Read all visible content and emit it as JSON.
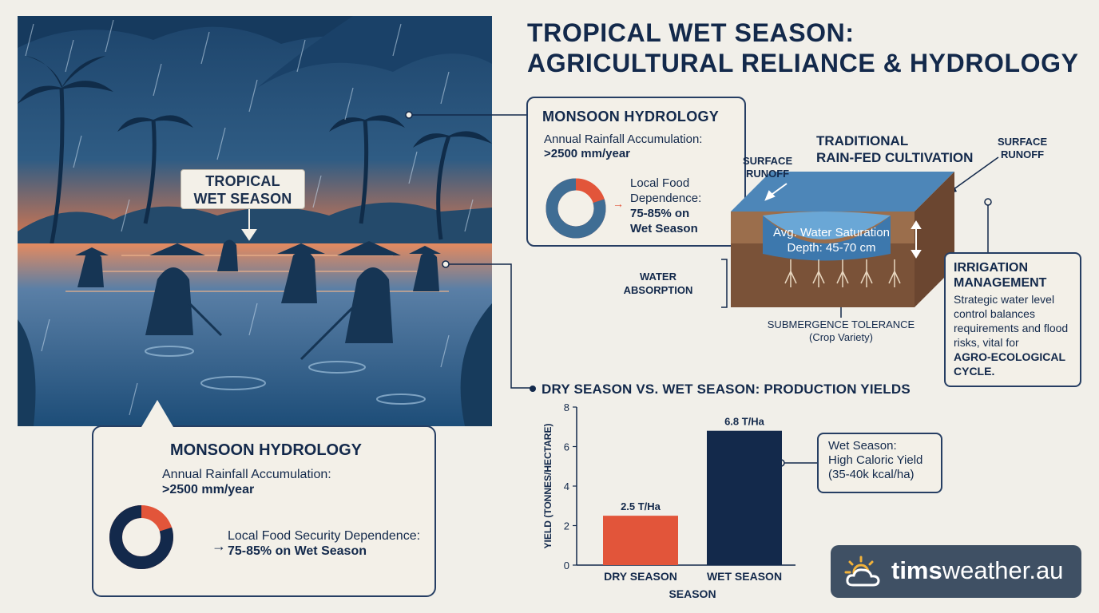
{
  "title": {
    "line1": "TROPICAL WET SEASON:",
    "line2": "AGRICULTURAL RELIANCE & HYDROLOGY"
  },
  "scene": {
    "label_line1": "TROPICAL",
    "label_line2": "WET SEASON"
  },
  "monsoon_left": {
    "title": "MONSOON HYDROLOGY",
    "rainfall_label": "Annual Rainfall Accumulation:",
    "rainfall_value": ">2500 mm/year",
    "dependence_label": "Local Food Security Dependence:",
    "dependence_value": "75-85% on Wet Season",
    "donut_share": 0.8,
    "arrow": "→"
  },
  "monsoon_right": {
    "title": "MONSOON HYDROLOGY",
    "rainfall_label": "Annual Rainfall Accumulation:",
    "rainfall_value": ">2500 mm/year",
    "dependence_line1": "Local Food",
    "dependence_line2": "Dependence:",
    "dependence_line3": "75-85% on",
    "dependence_line4": "Wet Season",
    "donut_share": 0.8,
    "arrow": "→"
  },
  "diagram": {
    "title_line1": "TRADITIONAL",
    "title_line2": "RAIN-FED CULTIVATION",
    "runoff_left_1": "SURFACE",
    "runoff_left_2": "RUNOFF",
    "runoff_right_1": "SURFACE",
    "runoff_right_2": "RUNOFF",
    "saturation_line1": "Avg. Water Saturation",
    "saturation_line2": "Depth: 45-70 cm",
    "absorption_line1": "WATER",
    "absorption_line2": "ABSORPTION",
    "submergence_line1": "SUBMERGENCE TOLERANCE",
    "submergence_line2": "(Crop Variety)"
  },
  "irrigation": {
    "title_line1": "IRRIGATION",
    "title_line2": "MANAGEMENT",
    "body": "Strategic water level control balances requirements and flood risks, vital for",
    "emphasis_line1": "AGRO-ECOLOGICAL",
    "emphasis_line2": "CYCLE."
  },
  "chart_heading": "DRY SEASON VS. WET SEASON: PRODUCTION YIELDS",
  "chart_data": {
    "type": "bar",
    "categories": [
      "DRY SEASON",
      "WET SEASON"
    ],
    "values": [
      2.5,
      6.8
    ],
    "data_labels": [
      "2.5 T/Ha",
      "6.8 T/Ha"
    ],
    "colors": [
      "#e2553a",
      "#13294b"
    ],
    "xlabel": "SEASON",
    "ylabel": "YIELD (TONNES/HECTARE)",
    "ylim": [
      0,
      8
    ],
    "yticks": [
      0,
      2,
      4,
      6,
      8
    ],
    "grid": false
  },
  "wet_note": {
    "line1": "Wet Season:",
    "line2": "High Caloric Yield",
    "line3": "(35-40k kcal/ha)"
  },
  "brand": {
    "bold": "tims",
    "regular": "weather.au"
  },
  "colors": {
    "navy": "#13294b",
    "accent": "#e2553a",
    "background": "#f1efe9",
    "brand_bg": "#3f5064"
  }
}
